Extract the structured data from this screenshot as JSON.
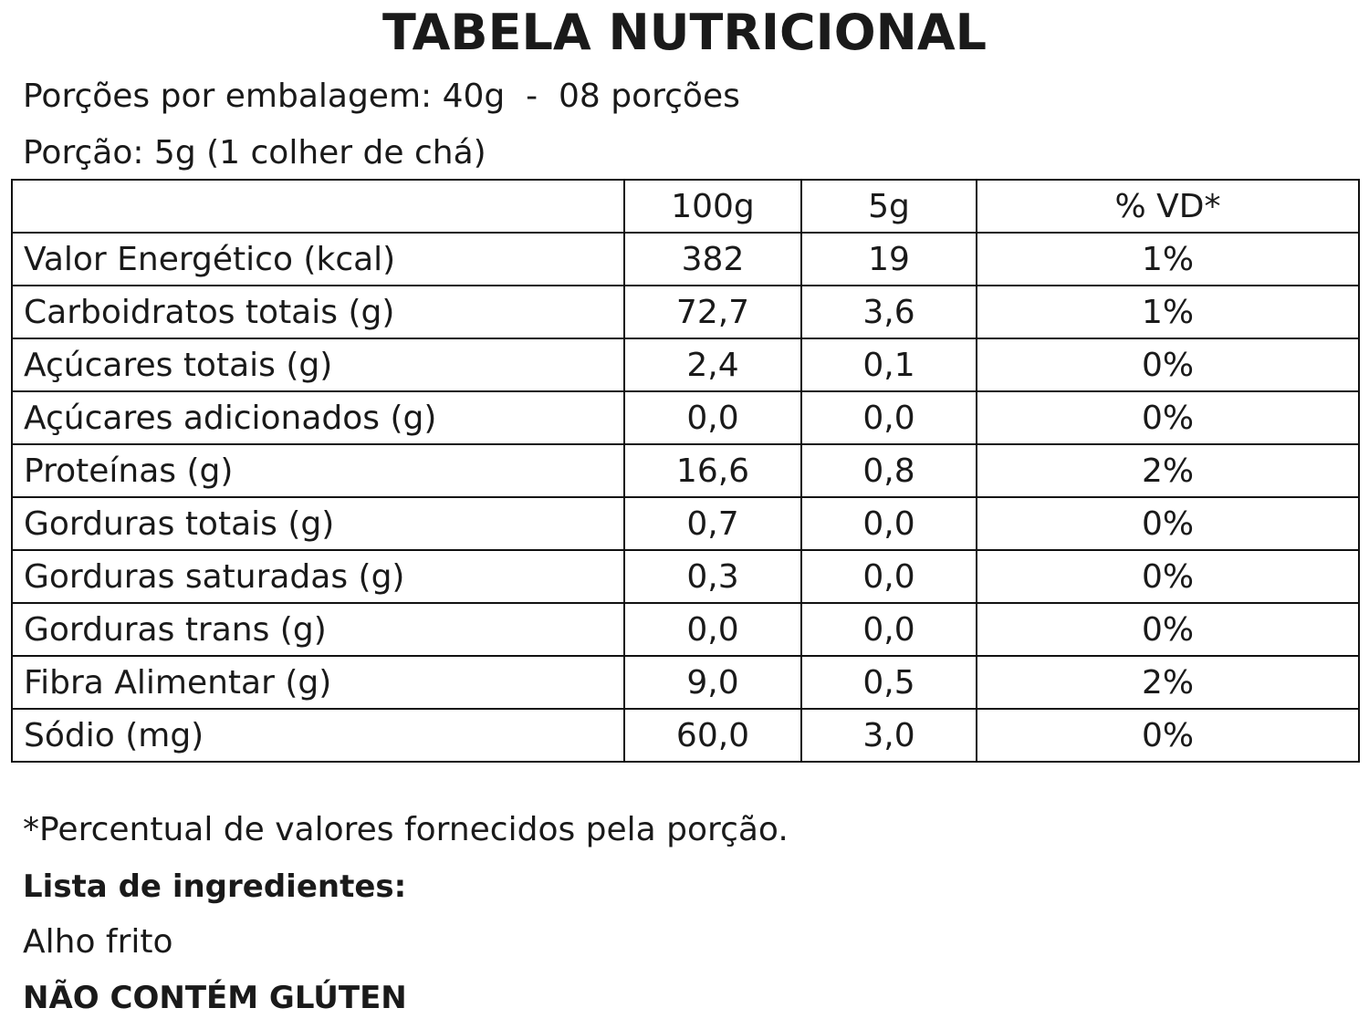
{
  "header": {
    "title": "TABELA NUTRICIONAL",
    "servings_per_package": "Porções por embalagem: 40g  -  08 porções",
    "serving": "Porção: 5g (1 colher de chá)"
  },
  "table": {
    "columns": [
      "100g",
      "5g",
      "% VD*"
    ],
    "rows": [
      [
        "Valor Energético (kcal)",
        "382",
        "19",
        "1%"
      ],
      [
        "Carboidratos totais (g)",
        "72,7",
        "3,6",
        "1%"
      ],
      [
        "Açúcares totais (g)",
        "2,4",
        "0,1",
        "0%"
      ],
      [
        "Açúcares adicionados (g)",
        "0,0",
        "0,0",
        "0%"
      ],
      [
        "Proteínas (g)",
        "16,6",
        "0,8",
        "2%"
      ],
      [
        "Gorduras totais (g)",
        "0,7",
        "0,0",
        "0%"
      ],
      [
        "Gorduras saturadas (g)",
        "0,3",
        "0,0",
        "0%"
      ],
      [
        "Gorduras trans (g)",
        "0,0",
        "0,0",
        "0%"
      ],
      [
        "Fibra Alimentar (g)",
        "9,0",
        "0,5",
        "2%"
      ],
      [
        "Sódio (mg)",
        "60,0",
        "3,0",
        "0%"
      ]
    ]
  },
  "footnote": "*Percentual de valores fornecidos pela porção.",
  "ingredients": {
    "heading": "Lista de ingredientes:",
    "text": "Alho frito"
  },
  "allergen": "NÃO CONTÉM GLÚTEN"
}
